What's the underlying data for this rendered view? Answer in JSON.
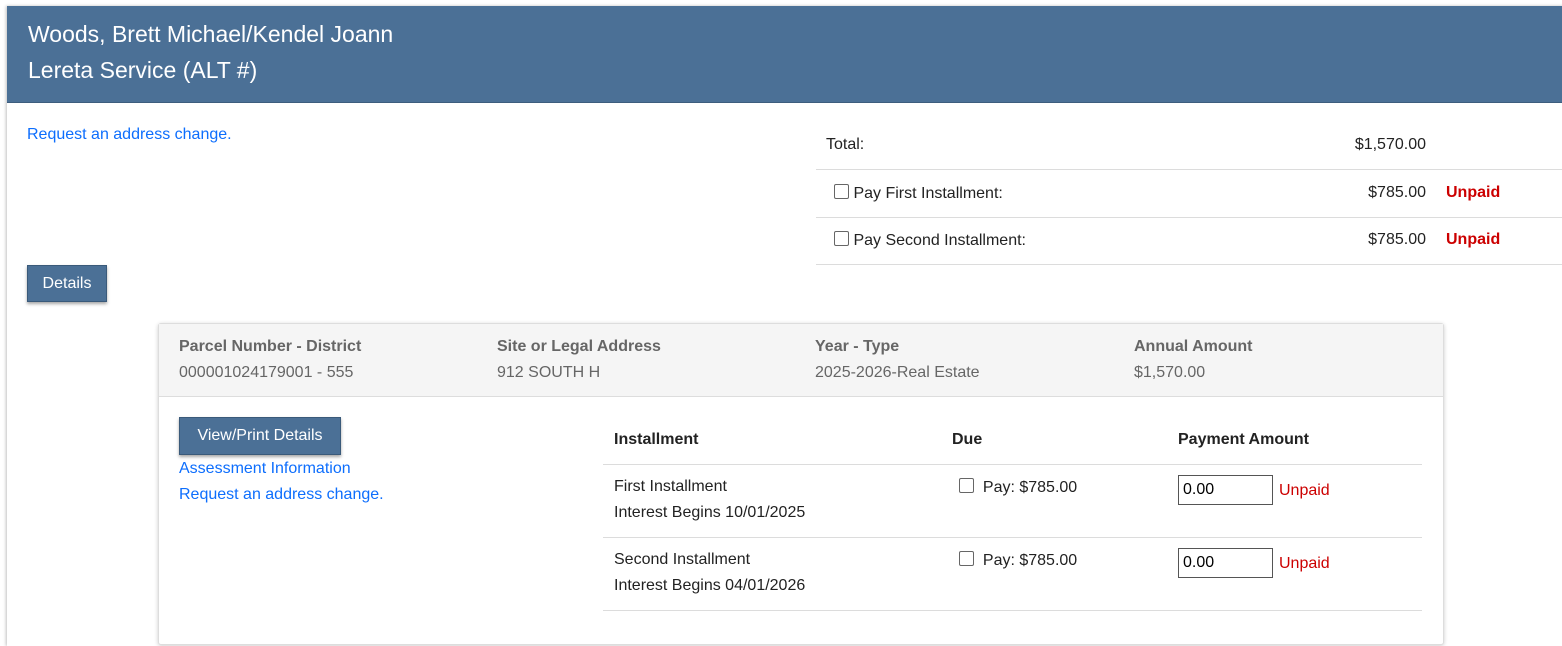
{
  "header": {
    "name": "Woods, Brett Michael/Kendel Joann",
    "service": "Lereta Service (ALT #)"
  },
  "top_link": "Request an address change.",
  "summary": {
    "total_label": "Total:",
    "total_amount": "$1,570.00",
    "rows": [
      {
        "label": "Pay First Installment:",
        "amount": "$785.00",
        "status": "Unpaid",
        "checked": false
      },
      {
        "label": "Pay Second Installment:",
        "amount": "$785.00",
        "status": "Unpaid",
        "checked": false
      }
    ]
  },
  "details_button": "Details",
  "parcel": {
    "columns": [
      {
        "label": "Parcel Number - District",
        "value": "000001024179001 - 555"
      },
      {
        "label": "Site or Legal Address",
        "value": "912 SOUTH H"
      },
      {
        "label": "Year - Type",
        "value": "2025-2026-Real Estate"
      },
      {
        "label": "Annual Amount",
        "value": "$1,570.00"
      }
    ],
    "view_print_button": "View/Print Details",
    "assessment_link": "Assessment Information",
    "address_link": "Request an address change.",
    "table": {
      "headers": [
        "Installment",
        "Due",
        "Payment Amount"
      ],
      "rows": [
        {
          "name": "First Installment",
          "interest": "Interest Begins 10/01/2025",
          "due": "Pay: $785.00",
          "payment": "0.00",
          "status": "Unpaid"
        },
        {
          "name": "Second Installment",
          "interest": "Interest Begins 04/01/2026",
          "due": "Pay: $785.00",
          "payment": "0.00",
          "status": "Unpaid"
        }
      ]
    }
  },
  "colors": {
    "header": "#4b7096",
    "link": "#0d6efd",
    "unpaid": "#cc0000"
  }
}
